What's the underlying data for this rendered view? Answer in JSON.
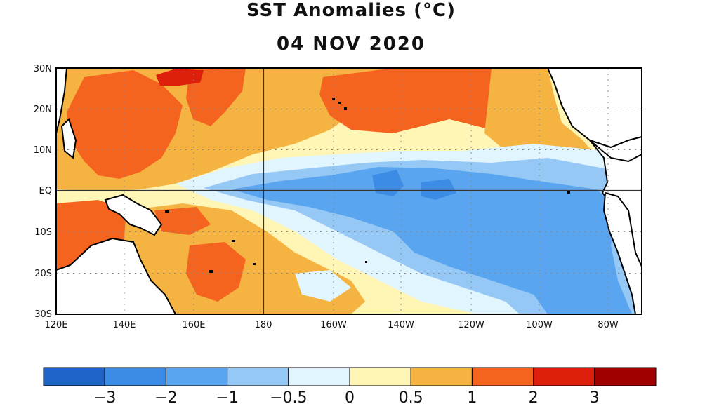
{
  "title": "SST Anomalies (°C)",
  "date": "04 NOV 2020",
  "lat_labels": [
    "30N",
    "20N",
    "10N",
    "EQ",
    "10S",
    "20S",
    "30S"
  ],
  "lon_labels": [
    "120E",
    "140E",
    "160E",
    "180",
    "160W",
    "140W",
    "120W",
    "100W",
    "80W"
  ],
  "colorbar": {
    "colors": [
      "#1e64c8",
      "#3c8ce6",
      "#5aa5f0",
      "#96c8f5",
      "#e1f5ff",
      "#fff5b4",
      "#f5b441",
      "#f5641e",
      "#dc1e0a",
      "#a00000"
    ],
    "labels": [
      "−3",
      "−2",
      "−1",
      "−0.5",
      "0",
      "0.5",
      "1",
      "2",
      "3"
    ]
  },
  "colors": {
    "land": "#ffffff",
    "coast": "#000000",
    "grid": "#888888"
  }
}
